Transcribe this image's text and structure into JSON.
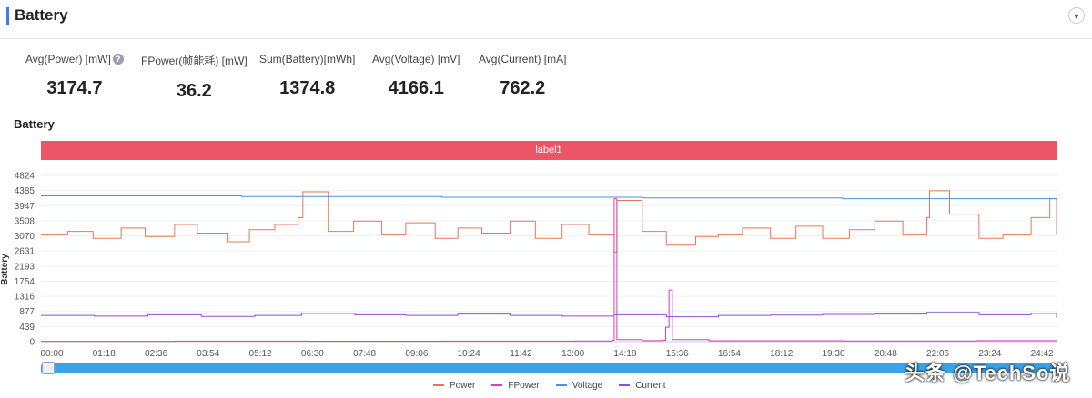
{
  "header": {
    "title": "Battery"
  },
  "stats": [
    {
      "label": "Avg(Power) [mW]",
      "value": "3174.7"
    },
    {
      "label": "FPower(帧能耗) [mW]",
      "value": "36.2"
    },
    {
      "label": "Sum(Battery)[mWh]",
      "value": "1374.8"
    },
    {
      "label": "Avg(Voltage) [mV]",
      "value": "4166.1"
    },
    {
      "label": "Avg(Current) [mA]",
      "value": "762.2"
    }
  ],
  "chart_section": {
    "title": "Battery",
    "label_bar": "label1"
  },
  "watermark": {
    "text": "头条 @TechSo说"
  },
  "chart_data": {
    "type": "line",
    "ylabel": "Battery",
    "ylim": [
      0,
      4824
    ],
    "y_ticks": [
      "4824",
      "4385",
      "3947",
      "3508",
      "3070",
      "2631",
      "2193",
      "1754",
      "1316",
      "877",
      "439",
      "0"
    ],
    "x_ticks": [
      "00:00",
      "01:18",
      "02:36",
      "03:54",
      "05:12",
      "06:30",
      "07:48",
      "09:06",
      "10:24",
      "11:42",
      "13:00",
      "14:18",
      "15:36",
      "16:54",
      "18:12",
      "19:30",
      "20:48",
      "22:06",
      "23:24",
      "24:42"
    ],
    "x_unit_minutes": [
      0,
      78,
      156,
      234,
      312,
      390,
      468,
      546,
      624,
      702,
      780,
      858,
      936,
      1014,
      1092,
      1170,
      1248,
      1326,
      1404,
      1482
    ],
    "series": [
      {
        "name": "Power",
        "color": "#e8775a",
        "x": [
          0,
          40,
          78,
          120,
          156,
          200,
          234,
          280,
          312,
          350,
          385,
          392,
          430,
          468,
          510,
          546,
          590,
          624,
          660,
          702,
          740,
          780,
          820,
          858,
          862,
          900,
          936,
          980,
          1014,
          1050,
          1092,
          1130,
          1170,
          1210,
          1248,
          1290,
          1326,
          1330,
          1360,
          1404,
          1440,
          1482,
          1510,
          1520
        ],
        "values": [
          3100,
          3200,
          3000,
          3300,
          3050,
          3400,
          3150,
          2900,
          3250,
          3400,
          3600,
          4350,
          3200,
          3500,
          3100,
          3450,
          3000,
          3300,
          3150,
          3500,
          3000,
          3400,
          3100,
          2600,
          4100,
          3200,
          2800,
          3050,
          3100,
          3300,
          3000,
          3350,
          3000,
          3250,
          3500,
          3100,
          3600,
          4380,
          3700,
          3000,
          3100,
          3600,
          4150,
          3100
        ]
      },
      {
        "name": "FPower",
        "color": "#d63fb9",
        "x": [
          0,
          200,
          400,
          600,
          800,
          855,
          858,
          862,
          900,
          930,
          935,
          940,
          945,
          1000,
          1200,
          1400,
          1520
        ],
        "values": [
          10,
          15,
          12,
          18,
          20,
          40,
          4150,
          60,
          30,
          40,
          420,
          1500,
          60,
          25,
          20,
          30,
          40
        ]
      },
      {
        "name": "Voltage",
        "color": "#4a90e2",
        "x": [
          0,
          300,
          600,
          900,
          1200,
          1520
        ],
        "values": [
          4230,
          4210,
          4190,
          4170,
          4150,
          4130
        ]
      },
      {
        "name": "Current",
        "color": "#8b4fd8",
        "x": [
          0,
          80,
          160,
          240,
          320,
          390,
          470,
          546,
          624,
          702,
          780,
          858,
          936,
          1014,
          1092,
          1170,
          1248,
          1326,
          1404,
          1482,
          1520
        ],
        "values": [
          760,
          740,
          780,
          730,
          760,
          820,
          780,
          760,
          800,
          760,
          740,
          780,
          720,
          760,
          770,
          790,
          800,
          850,
          780,
          820,
          700
        ]
      }
    ]
  }
}
